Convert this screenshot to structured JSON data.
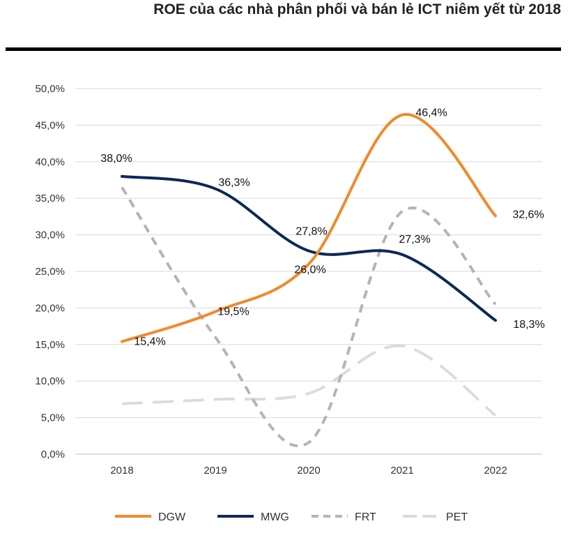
{
  "title": "ROE của các nhà phân phối và bán lẻ ICT niêm yết từ 2018",
  "chart_data": {
    "type": "line",
    "title": "ROE của các nhà phân phối và bán lẻ ICT niêm yết từ 2018",
    "categories": [
      "2018",
      "2019",
      "2020",
      "2021",
      "2022"
    ],
    "ylim": [
      0,
      50
    ],
    "y_ticks": [
      "0,0%",
      "5,0%",
      "10,0%",
      "15,0%",
      "20,0%",
      "25,0%",
      "30,0%",
      "35,0%",
      "40,0%",
      "45,0%",
      "50,0%"
    ],
    "grid": true,
    "smooth": true,
    "legend_position": "bottom",
    "series": [
      {
        "name": "DGW",
        "values": [
          15.4,
          19.5,
          26.0,
          46.4,
          32.6
        ],
        "labels": [
          "15,4%",
          "19,5%",
          "26,0%",
          "46,4%",
          "32,6%"
        ],
        "color": "#F0892A",
        "style": "solid"
      },
      {
        "name": "MWG",
        "values": [
          38.0,
          36.3,
          27.8,
          27.3,
          18.3
        ],
        "labels": [
          "38,0%",
          "36,3%",
          "27,8%",
          "27,3%",
          "18,3%"
        ],
        "color": "#0D2757",
        "style": "solid"
      },
      {
        "name": "FRT",
        "values": [
          36.5,
          16.0,
          1.6,
          33.2,
          20.5
        ],
        "labels": [],
        "color": "#B4B4B4",
        "style": "dashed"
      },
      {
        "name": "PET",
        "values": [
          6.9,
          7.5,
          8.3,
          14.8,
          5.3
        ],
        "labels": [],
        "color": "#DCDCDC",
        "style": "dashed"
      }
    ]
  }
}
